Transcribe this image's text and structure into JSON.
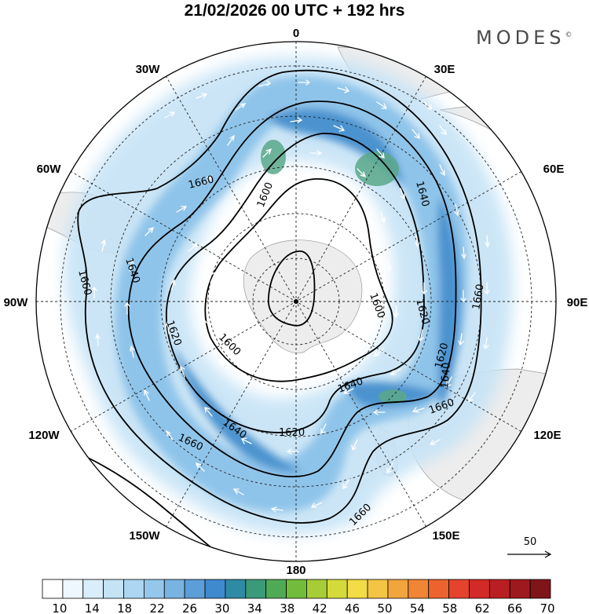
{
  "header": {
    "title": "21/02/2026  00 UTC  + 192 hrs",
    "brand": "MODES",
    "brand_mark": "©"
  },
  "map": {
    "projection": "south-polar-stereographic",
    "longitude_labels": {
      "top": "0",
      "top_right": "30E",
      "right_upper": "60E",
      "right": "90E",
      "right_lower": "120E",
      "bottom_right": "150E",
      "bottom": "180",
      "bottom_left": "150W",
      "left_lower": "120W",
      "left": "90W",
      "left_upper": "60W",
      "top_left": "30W"
    },
    "contour_labels": [
      "1660",
      "1640",
      "1600",
      "1660",
      "1660",
      "1640",
      "1620",
      "1620",
      "1600",
      "1600",
      "1620",
      "1640",
      "1640",
      "1660",
      "1620",
      "1640",
      "1660",
      "1660"
    ],
    "wind_reference_value": "50",
    "colors": {
      "wind_light": "#c6e3f6",
      "wind_mid": "#8fc4ea",
      "wind_strong": "#4b93cf",
      "jet_core": "#5aa889",
      "land": "#ededed"
    }
  },
  "colorbar": {
    "ticks": [
      "10",
      "14",
      "18",
      "22",
      "26",
      "30",
      "34",
      "38",
      "42",
      "46",
      "50",
      "54",
      "58",
      "62",
      "66",
      "70"
    ],
    "colors": [
      "#ffffff",
      "#eef7fd",
      "#d9eefa",
      "#c4e4f6",
      "#acd6f1",
      "#93c7eb",
      "#78b3e2",
      "#5c9ed8",
      "#3f89cf",
      "#2f8aa5",
      "#3b9a79",
      "#4faa55",
      "#72bc3b",
      "#a6cd37",
      "#d4da3a",
      "#f3dc45",
      "#f4c444",
      "#f2a43d",
      "#f08536",
      "#ec6330",
      "#e3442b",
      "#d22a27",
      "#b91f22",
      "#9d191e",
      "#7f1519"
    ]
  }
}
